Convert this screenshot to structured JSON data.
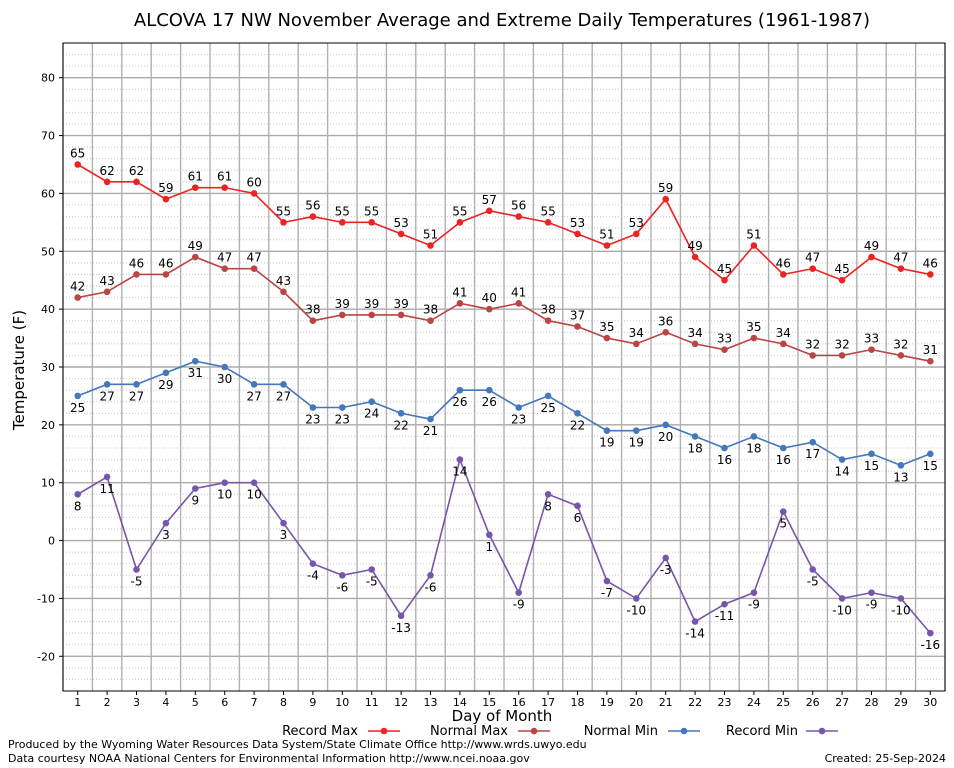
{
  "chart_data": {
    "type": "line",
    "title": "ALCOVA 17 NW November Average and Extreme Daily Temperatures (1961-1987)",
    "xlabel": "Day of Month",
    "ylabel": "Temperature (F)",
    "xlim": [
      0.5,
      30.5
    ],
    "ylim": [
      -26,
      86
    ],
    "x": [
      1,
      2,
      3,
      4,
      5,
      6,
      7,
      8,
      9,
      10,
      11,
      12,
      13,
      14,
      15,
      16,
      17,
      18,
      19,
      20,
      21,
      22,
      23,
      24,
      25,
      26,
      27,
      28,
      29,
      30
    ],
    "x_ticks": [
      "1",
      "2",
      "3",
      "4",
      "5",
      "6",
      "7",
      "8",
      "9",
      "10",
      "11",
      "12",
      "13",
      "14",
      "15",
      "16",
      "17",
      "18",
      "19",
      "20",
      "21",
      "22",
      "23",
      "24",
      "25",
      "26",
      "27",
      "28",
      "29",
      "30"
    ],
    "y_ticks": [
      -20,
      -10,
      0,
      10,
      20,
      30,
      40,
      50,
      60,
      70,
      80
    ],
    "grid": true,
    "legend_position": "bottom",
    "series": [
      {
        "name": "Record Max",
        "color": "#ee2222",
        "values": [
          65,
          62,
          62,
          59,
          61,
          61,
          60,
          55,
          56,
          55,
          55,
          53,
          51,
          55,
          57,
          56,
          55,
          53,
          51,
          53,
          59,
          49,
          45,
          51,
          46,
          47,
          45,
          49,
          47,
          46
        ]
      },
      {
        "name": "Normal Max",
        "color": "#bb4444",
        "values": [
          42,
          43,
          46,
          46,
          49,
          47,
          47,
          43,
          38,
          39,
          39,
          39,
          38,
          41,
          40,
          41,
          38,
          37,
          35,
          34,
          36,
          34,
          33,
          35,
          34,
          32,
          32,
          33,
          32,
          31
        ]
      },
      {
        "name": "Normal Min",
        "color": "#4477bb",
        "values": [
          25,
          27,
          27,
          29,
          31,
          30,
          27,
          27,
          23,
          23,
          24,
          22,
          21,
          26,
          26,
          23,
          25,
          22,
          19,
          19,
          20,
          18,
          16,
          18,
          16,
          17,
          14,
          15,
          13,
          15
        ]
      },
      {
        "name": "Record Min",
        "color": "#7755aa",
        "values": [
          8,
          11,
          -5,
          3,
          9,
          10,
          10,
          3,
          -4,
          -6,
          -5,
          -13,
          -6,
          14,
          1,
          -9,
          8,
          6,
          -7,
          -10,
          -3,
          -14,
          -11,
          -9,
          5,
          -5,
          -10,
          -9,
          -10,
          -16
        ]
      }
    ]
  },
  "footer": {
    "produced_by": "Produced by the Wyoming Water Resources Data System/State Climate Office http://www.wrds.uwyo.edu",
    "courtesy": "Data courtesy NOAA National Centers for Environmental Information http://www.ncei.noaa.gov",
    "created": "Created:  25-Sep-2024"
  }
}
